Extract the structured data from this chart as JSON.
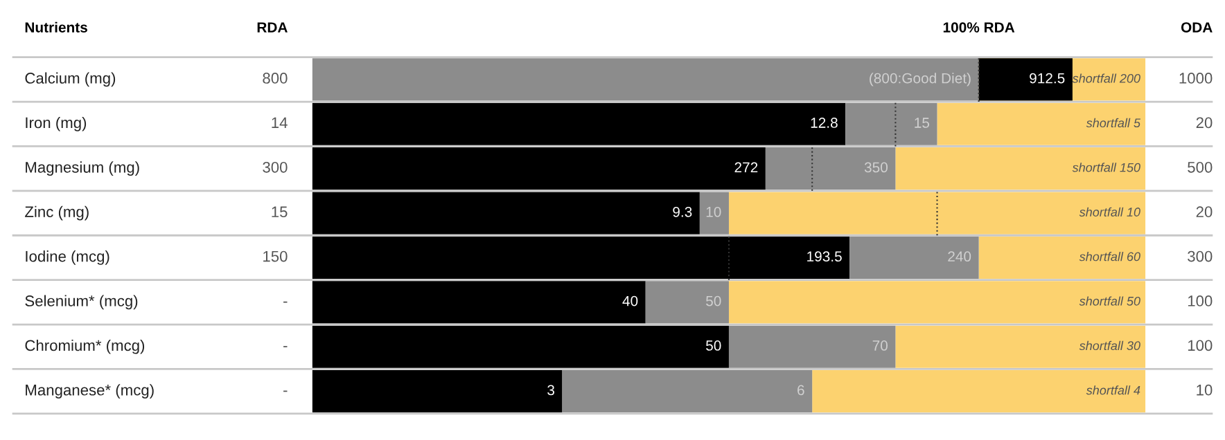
{
  "chart_data": {
    "type": "other",
    "ylabel": "Nutrients",
    "categories": [
      "Calcium (mg)",
      "Iron (mg)",
      "Magnesium (mg)",
      "Zinc (mg)",
      "Iodine (mcg)",
      "Selenium* (mcg)",
      "Chromium* (mcg)",
      "Manganese* (mcg)"
    ],
    "series": [
      {
        "name": "RDA",
        "type": "other",
        "values": [
          800,
          14,
          300,
          15,
          150,
          null,
          null,
          null
        ],
        "value_labels": [
          "800",
          "14",
          "300",
          "15",
          "150",
          "-",
          "-",
          "-"
        ]
      },
      {
        "type": "bar",
        "color": "#000000",
        "values": [
          912.5,
          12.8,
          272,
          9.3,
          193.5,
          40,
          50,
          3
        ],
        "value_labels": [
          "912.5",
          "12.8",
          "272",
          "9.3",
          "193.5",
          "40",
          "50",
          "3"
        ]
      },
      {
        "type": "bar",
        "color": "#8c8c8c",
        "values": [
          800,
          15,
          350,
          10,
          240,
          50,
          70,
          6
        ],
        "value_labels": [
          "(800:Good Diet)",
          "15",
          "350",
          "10",
          "240",
          "50",
          "70",
          "6"
        ]
      },
      {
        "type": "bar",
        "color": "#fcd26f",
        "values": [
          200,
          5,
          150,
          10,
          60,
          50,
          30,
          4
        ],
        "value_labels": [
          "shortfall 200",
          "shortfall 5",
          "shortfall 150",
          "shortfall 10",
          "shortfall 60",
          "shortfall 50",
          "shortfall 30",
          "shortfall 4"
        ]
      },
      {
        "name": "ODA",
        "type": "other",
        "values": [
          1000,
          20,
          500,
          20,
          300,
          100,
          100,
          10
        ],
        "value_labels": [
          "1000",
          "20",
          "500",
          "20",
          "300",
          "100",
          "100",
          "10"
        ]
      }
    ],
    "ref_lines": [
      {
        "axis": "x",
        "label": "100% RDA",
        "line_style": "dotted",
        "color": "#333333"
      }
    ]
  }
}
